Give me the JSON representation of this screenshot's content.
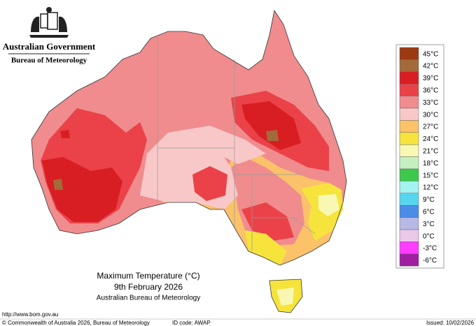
{
  "header": {
    "government": "Australian Government",
    "agency": "Bureau of Meteorology"
  },
  "map": {
    "title": "Maximum Temperature (°C)",
    "date": "9th February 2026",
    "source": "Australian Bureau of Meteorology"
  },
  "legend": [
    {
      "label": "45°C",
      "color": "#9c3a12"
    },
    {
      "label": "42°C",
      "color": "#a36a3a"
    },
    {
      "label": "39°C",
      "color": "#d81e22"
    },
    {
      "label": "36°C",
      "color": "#ea4248"
    },
    {
      "label": "33°C",
      "color": "#f08c8e"
    },
    {
      "label": "30°C",
      "color": "#f8c8c8"
    },
    {
      "label": "27°C",
      "color": "#fbc26a"
    },
    {
      "label": "24°C",
      "color": "#f6e43c"
    },
    {
      "label": "21°C",
      "color": "#f8f8b4"
    },
    {
      "label": "18°C",
      "color": "#c6f0c0"
    },
    {
      "label": "15°C",
      "color": "#3cc84c"
    },
    {
      "label": "12°C",
      "color": "#a4f2f2"
    },
    {
      "label": "9°C",
      "color": "#58d6f0"
    },
    {
      "label": "6°C",
      "color": "#4a8ce6"
    },
    {
      "label": "3°C",
      "color": "#b8b8e6"
    },
    {
      "label": "0°C",
      "color": "#eac8ea"
    },
    {
      "label": "-3°C",
      "color": "#ff3cff"
    },
    {
      "label": "-6°C",
      "color": "#a01ea0"
    }
  ],
  "footer": {
    "url": "http://www.bom.gov.au",
    "copyright": "© Commonwealth of Australia 2026, Bureau of Meteorology",
    "id_code": "ID code: AWAP",
    "issued": "Issued: 10/02/2026"
  }
}
